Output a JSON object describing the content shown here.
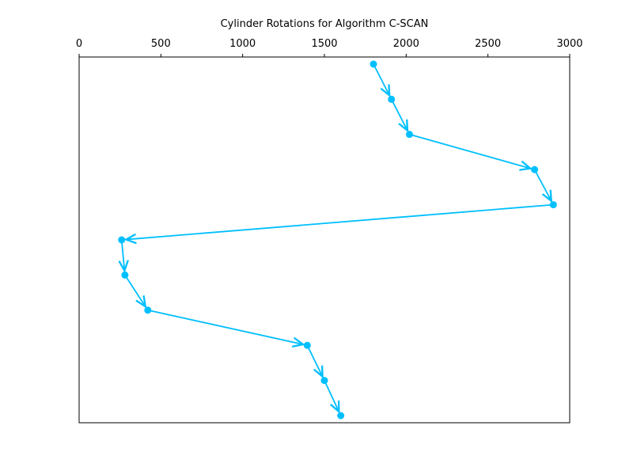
{
  "chart_data": {
    "type": "line",
    "title": "Cylinder Rotations for Algorithm C-SCAN",
    "xlabel": "",
    "ylabel": "",
    "x_axis_position": "top",
    "y_axis_visible": false,
    "xlim": [
      0,
      3000
    ],
    "x_ticks": [
      0,
      500,
      1000,
      1500,
      2000,
      2500,
      3000
    ],
    "x_tick_labels": [
      "0",
      "500",
      "1000",
      "1500",
      "2000",
      "2500",
      "3000"
    ],
    "grid": false,
    "legend": "none",
    "series_color": "#00bfff",
    "marker": "circle",
    "arrows_between_points": true,
    "series": [
      {
        "values": [
          1800,
          1910,
          2020,
          2785,
          2900,
          260,
          280,
          420,
          1395,
          1500,
          1600
        ]
      }
    ]
  }
}
